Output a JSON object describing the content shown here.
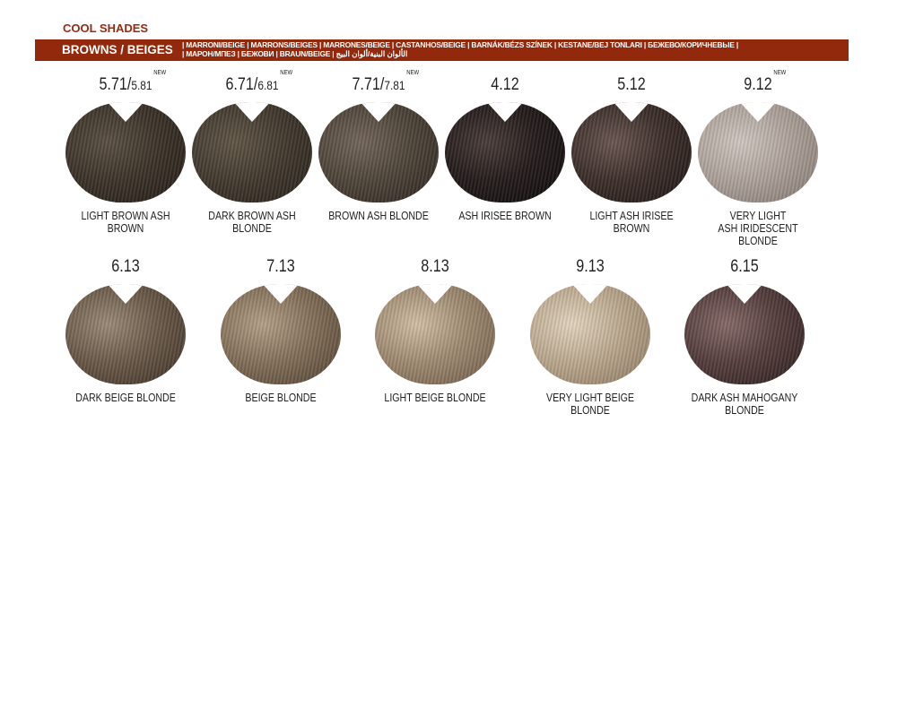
{
  "title": "COOL SHADES",
  "bar": {
    "main": "BROWNS / BEIGES",
    "langs_line1": "| MARRONI/BEIGE |  MARRONS/BEIGES |  MARRONES/BEIGE | CASTANHOS/BEIGE | BARNÁK/BÉZS SZÍNEK | KESTANE/BEJ TONLARI | БЕЖЕВО/КОРИЧНЕВЫЕ |",
    "langs_line2": "| МАРОН/МПЕЗ | БЕЖОВИ | BRAUN/BEIGE | الألوان البنية/ألوان البيج"
  },
  "row1": [
    {
      "code": "5.71/",
      "code_small": "5.81",
      "new": "NEW",
      "name": "LIGHT BROWN ASH BROWN",
      "colors": [
        "#5a4f42",
        "#3d342a",
        "#211b15"
      ]
    },
    {
      "code": "6.71/",
      "code_small": "6.81",
      "new": "NEW",
      "name": "DARK BROWN ASH BLONDE",
      "colors": [
        "#605646",
        "#433a2f",
        "#25201a"
      ]
    },
    {
      "code": "7.71/",
      "code_small": "7.81",
      "new": "NEW",
      "name": "BROWN ASH BLONDE",
      "colors": [
        "#73665a",
        "#4f453a",
        "#2c251f"
      ]
    },
    {
      "code": "4.12",
      "code_small": "",
      "new": "",
      "name": "ASH IRISEE BROWN",
      "colors": [
        "#4a3d3a",
        "#241c1b",
        "#0d0a0a"
      ]
    },
    {
      "code": "5.12",
      "code_small": "",
      "new": "",
      "name": "LIGHT ASH IRISEE BROWN",
      "colors": [
        "#6a5650",
        "#3d2f2b",
        "#1c1513"
      ]
    },
    {
      "code": "9.12",
      "code_small": "",
      "new": "NEW",
      "name": "VERY LIGHT",
      "name2": "ASH IRIDESCENT BLONDE",
      "colors": [
        "#cfc6c0",
        "#aea39b",
        "#80766f"
      ]
    }
  ],
  "row2": [
    {
      "code": "6.13",
      "name": "DARK BEIGE BLONDE",
      "colors": [
        "#9b8a78",
        "#6b5a49",
        "#3b2f25"
      ]
    },
    {
      "code": "7.13",
      "name": "BEIGE BLONDE",
      "colors": [
        "#b4a088",
        "#84705a",
        "#4e3f30"
      ]
    },
    {
      "code": "8.13",
      "name": "LIGHT BEIGE BLONDE",
      "colors": [
        "#d2bfa5",
        "#a08b72",
        "#6a5845"
      ]
    },
    {
      "code": "9.13",
      "name": "VERY LIGHT BEIGE BLONDE",
      "colors": [
        "#e2d4bf",
        "#bca98f",
        "#8a7660"
      ]
    },
    {
      "code": "6.15",
      "name": "DARK ASH MAHOGANY BLONDE",
      "colors": [
        "#856a68",
        "#553e3d",
        "#2a1c1d"
      ]
    }
  ]
}
